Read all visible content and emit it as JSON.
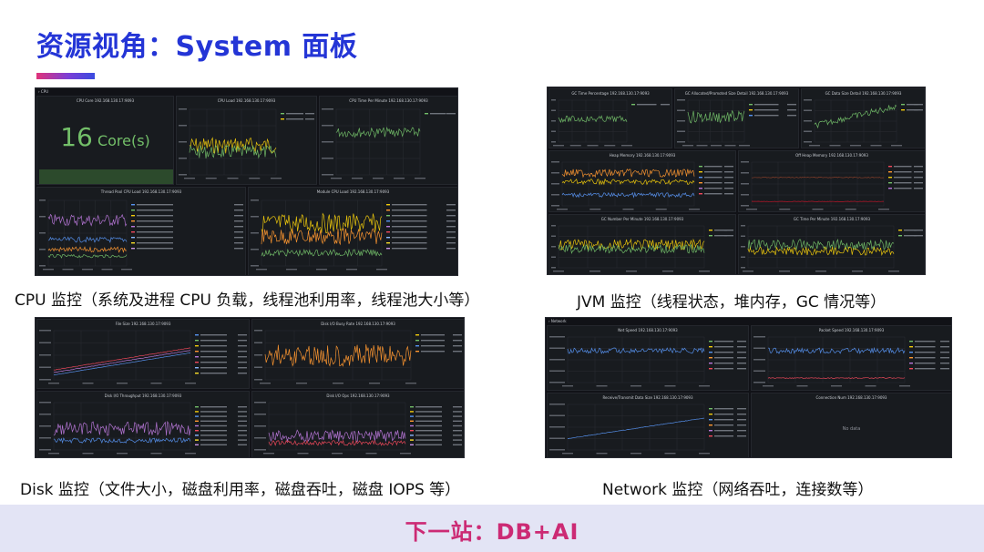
{
  "slide": {
    "title": "资源视角：System 面板",
    "footer": "下一站：DB+AI",
    "accent_colors": [
      "#2435d6",
      "#e0337a",
      "#cc2a74"
    ]
  },
  "panels": {
    "cpu": {
      "caption": "CPU 监控（系统及进程 CPU 负载，线程池利用率，线程池大小等）",
      "row_label": "› CPU",
      "cpu_core": {
        "title": "CPU Core 192.168.130.17:9093",
        "value": "16",
        "unit": "Core(s)"
      },
      "cpu_load": {
        "title": "CPU Load 192.168.130.17:9093"
      },
      "cpu_time": {
        "title": "CPU Time Per Minute 192.168.130.17:9093"
      },
      "thread_pool": {
        "title": "Thread Pool CPU Load 192.168.130.17:9093"
      },
      "module_cpu": {
        "title": "Module CPU Load 192.168.130.17:9093"
      }
    },
    "jvm": {
      "caption": "JVM 监控（线程状态，堆内存，GC 情况等）",
      "gc_time": {
        "title": "GC Time Percentage 192.168.130.17:9093"
      },
      "gc_alloc": {
        "title": "GC Allocated/Promoted Size Detail 192.168.130.17:9093"
      },
      "gc_data": {
        "title": "GC Data Size Detail 192.168.130.17:9093"
      },
      "heap": {
        "title": "Heap Memory 192.168.130.17:9093"
      },
      "offheap": {
        "title": "Off Heap Memory 192.168.130.17:9093"
      },
      "gc_number": {
        "title": "GC Number Per Minute 192.168.130.17:9093"
      },
      "gc_time_min": {
        "title": "GC Time Per Minute 192.168.130.17:9093"
      }
    },
    "disk": {
      "caption": "Disk 监控（文件大小，磁盘利用率，磁盘吞吐，磁盘 IOPS 等）",
      "file_size": {
        "title": "File Size 192.168.130.17:9093"
      },
      "busy_rate": {
        "title": "Disk I/O Busy Rate 192.168.130.17:9093"
      },
      "throughput": {
        "title": "Disk I/O Throughput 192.168.130.17:9093"
      },
      "ops": {
        "title": "Disk I/O Ops 192.168.130.17:9093"
      }
    },
    "network": {
      "caption": "Network 监控（网络吞吐，连接数等）",
      "row_label": "› Network",
      "net_speed": {
        "title": "Net Speed 192.168.130.17:9093"
      },
      "packet_speed": {
        "title": "Packet Speed 192.168.130.17:9093"
      },
      "transmit": {
        "title": "Receive/Transmit Data Size 192.168.130.17:9093"
      },
      "connection": {
        "title": "Connection Num 192.168.130.17:9093",
        "empty": "No data"
      }
    }
  }
}
